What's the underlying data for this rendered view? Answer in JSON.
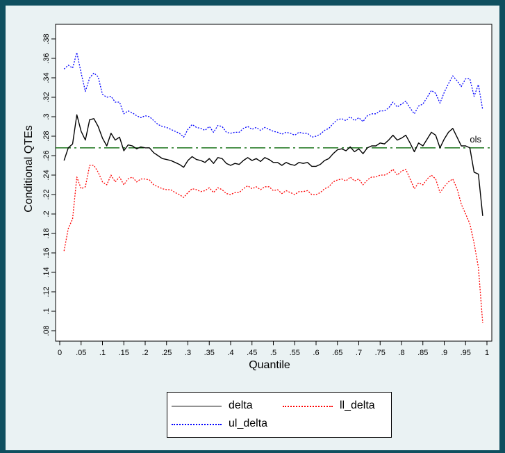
{
  "chart_data": {
    "type": "line",
    "xlabel": "Quantile",
    "ylabel": "Conditional QTEs",
    "xlim": [
      0,
      1
    ],
    "ylim": [
      0.08,
      0.38
    ],
    "x_ticks": [
      "0",
      ".05",
      ".1",
      ".15",
      ".2",
      ".25",
      ".3",
      ".35",
      ".4",
      ".45",
      ".5",
      ".55",
      ".6",
      ".65",
      ".7",
      ".75",
      ".8",
      ".85",
      ".9",
      ".95",
      "1"
    ],
    "y_ticks": [
      ".08",
      ".1",
      ".12",
      ".14",
      ".16",
      ".18",
      ".2",
      ".22",
      ".24",
      ".26",
      ".28",
      ".3",
      ".32",
      ".34",
      ".36",
      ".38"
    ],
    "grid": false,
    "legend_position": "bottom",
    "series": [
      {
        "name": "delta",
        "color": "#000000",
        "style": "solid",
        "points": [
          [
            0.01,
            0.255
          ],
          [
            0.02,
            0.268
          ],
          [
            0.03,
            0.272
          ],
          [
            0.04,
            0.302
          ],
          [
            0.05,
            0.285
          ],
          [
            0.06,
            0.276
          ],
          [
            0.07,
            0.297
          ],
          [
            0.08,
            0.298
          ],
          [
            0.09,
            0.29
          ],
          [
            0.1,
            0.278
          ],
          [
            0.11,
            0.27
          ],
          [
            0.12,
            0.283
          ],
          [
            0.13,
            0.276
          ],
          [
            0.14,
            0.279
          ],
          [
            0.15,
            0.265
          ],
          [
            0.16,
            0.271
          ],
          [
            0.17,
            0.27
          ],
          [
            0.18,
            0.267
          ],
          [
            0.19,
            0.269
          ],
          [
            0.2,
            0.268
          ],
          [
            0.21,
            0.268
          ],
          [
            0.22,
            0.263
          ],
          [
            0.23,
            0.26
          ],
          [
            0.24,
            0.257
          ],
          [
            0.25,
            0.256
          ],
          [
            0.26,
            0.255
          ],
          [
            0.27,
            0.253
          ],
          [
            0.28,
            0.251
          ],
          [
            0.29,
            0.248
          ],
          [
            0.3,
            0.255
          ],
          [
            0.31,
            0.259
          ],
          [
            0.32,
            0.256
          ],
          [
            0.33,
            0.255
          ],
          [
            0.34,
            0.253
          ],
          [
            0.35,
            0.257
          ],
          [
            0.36,
            0.252
          ],
          [
            0.37,
            0.258
          ],
          [
            0.38,
            0.257
          ],
          [
            0.39,
            0.252
          ],
          [
            0.4,
            0.25
          ],
          [
            0.41,
            0.252
          ],
          [
            0.42,
            0.251
          ],
          [
            0.43,
            0.255
          ],
          [
            0.44,
            0.258
          ],
          [
            0.45,
            0.255
          ],
          [
            0.46,
            0.257
          ],
          [
            0.47,
            0.254
          ],
          [
            0.48,
            0.258
          ],
          [
            0.49,
            0.256
          ],
          [
            0.5,
            0.253
          ],
          [
            0.51,
            0.253
          ],
          [
            0.52,
            0.25
          ],
          [
            0.53,
            0.253
          ],
          [
            0.54,
            0.251
          ],
          [
            0.55,
            0.25
          ],
          [
            0.56,
            0.253
          ],
          [
            0.57,
            0.252
          ],
          [
            0.58,
            0.253
          ],
          [
            0.59,
            0.249
          ],
          [
            0.6,
            0.249
          ],
          [
            0.61,
            0.251
          ],
          [
            0.62,
            0.255
          ],
          [
            0.63,
            0.257
          ],
          [
            0.64,
            0.262
          ],
          [
            0.65,
            0.266
          ],
          [
            0.66,
            0.267
          ],
          [
            0.67,
            0.265
          ],
          [
            0.68,
            0.269
          ],
          [
            0.69,
            0.264
          ],
          [
            0.7,
            0.267
          ],
          [
            0.71,
            0.262
          ],
          [
            0.72,
            0.268
          ],
          [
            0.73,
            0.27
          ],
          [
            0.74,
            0.27
          ],
          [
            0.75,
            0.273
          ],
          [
            0.76,
            0.272
          ],
          [
            0.77,
            0.276
          ],
          [
            0.78,
            0.281
          ],
          [
            0.79,
            0.276
          ],
          [
            0.8,
            0.278
          ],
          [
            0.81,
            0.281
          ],
          [
            0.82,
            0.273
          ],
          [
            0.83,
            0.264
          ],
          [
            0.84,
            0.273
          ],
          [
            0.85,
            0.27
          ],
          [
            0.86,
            0.277
          ],
          [
            0.87,
            0.284
          ],
          [
            0.88,
            0.281
          ],
          [
            0.89,
            0.268
          ],
          [
            0.9,
            0.277
          ],
          [
            0.91,
            0.284
          ],
          [
            0.92,
            0.288
          ],
          [
            0.93,
            0.279
          ],
          [
            0.94,
            0.27
          ],
          [
            0.95,
            0.27
          ],
          [
            0.96,
            0.268
          ],
          [
            0.97,
            0.243
          ],
          [
            0.98,
            0.241
          ],
          [
            0.99,
            0.198
          ]
        ]
      },
      {
        "name": "ll_delta",
        "color": "#ff0000",
        "style": "dotted",
        "points": [
          [
            0.01,
            0.162
          ],
          [
            0.02,
            0.185
          ],
          [
            0.03,
            0.195
          ],
          [
            0.04,
            0.238
          ],
          [
            0.05,
            0.226
          ],
          [
            0.06,
            0.228
          ],
          [
            0.07,
            0.25
          ],
          [
            0.08,
            0.25
          ],
          [
            0.09,
            0.243
          ],
          [
            0.1,
            0.233
          ],
          [
            0.11,
            0.23
          ],
          [
            0.12,
            0.24
          ],
          [
            0.13,
            0.233
          ],
          [
            0.14,
            0.238
          ],
          [
            0.15,
            0.23
          ],
          [
            0.16,
            0.236
          ],
          [
            0.17,
            0.238
          ],
          [
            0.18,
            0.233
          ],
          [
            0.19,
            0.236
          ],
          [
            0.2,
            0.236
          ],
          [
            0.21,
            0.235
          ],
          [
            0.22,
            0.23
          ],
          [
            0.23,
            0.228
          ],
          [
            0.24,
            0.226
          ],
          [
            0.25,
            0.225
          ],
          [
            0.26,
            0.225
          ],
          [
            0.27,
            0.222
          ],
          [
            0.28,
            0.22
          ],
          [
            0.29,
            0.217
          ],
          [
            0.3,
            0.222
          ],
          [
            0.31,
            0.226
          ],
          [
            0.32,
            0.225
          ],
          [
            0.33,
            0.223
          ],
          [
            0.34,
            0.224
          ],
          [
            0.35,
            0.227
          ],
          [
            0.36,
            0.222
          ],
          [
            0.37,
            0.227
          ],
          [
            0.38,
            0.225
          ],
          [
            0.39,
            0.221
          ],
          [
            0.4,
            0.22
          ],
          [
            0.41,
            0.222
          ],
          [
            0.42,
            0.222
          ],
          [
            0.43,
            0.226
          ],
          [
            0.44,
            0.229
          ],
          [
            0.45,
            0.226
          ],
          [
            0.46,
            0.228
          ],
          [
            0.47,
            0.225
          ],
          [
            0.48,
            0.228
          ],
          [
            0.49,
            0.228
          ],
          [
            0.5,
            0.224
          ],
          [
            0.51,
            0.225
          ],
          [
            0.52,
            0.221
          ],
          [
            0.53,
            0.224
          ],
          [
            0.54,
            0.222
          ],
          [
            0.55,
            0.22
          ],
          [
            0.56,
            0.223
          ],
          [
            0.57,
            0.223
          ],
          [
            0.58,
            0.224
          ],
          [
            0.59,
            0.22
          ],
          [
            0.6,
            0.22
          ],
          [
            0.61,
            0.222
          ],
          [
            0.62,
            0.226
          ],
          [
            0.63,
            0.228
          ],
          [
            0.64,
            0.233
          ],
          [
            0.65,
            0.235
          ],
          [
            0.66,
            0.236
          ],
          [
            0.67,
            0.234
          ],
          [
            0.68,
            0.238
          ],
          [
            0.69,
            0.234
          ],
          [
            0.7,
            0.236
          ],
          [
            0.71,
            0.23
          ],
          [
            0.72,
            0.235
          ],
          [
            0.73,
            0.238
          ],
          [
            0.74,
            0.238
          ],
          [
            0.75,
            0.24
          ],
          [
            0.76,
            0.24
          ],
          [
            0.77,
            0.242
          ],
          [
            0.78,
            0.246
          ],
          [
            0.79,
            0.24
          ],
          [
            0.8,
            0.244
          ],
          [
            0.81,
            0.246
          ],
          [
            0.82,
            0.236
          ],
          [
            0.83,
            0.226
          ],
          [
            0.84,
            0.232
          ],
          [
            0.85,
            0.23
          ],
          [
            0.86,
            0.236
          ],
          [
            0.87,
            0.24
          ],
          [
            0.88,
            0.236
          ],
          [
            0.89,
            0.222
          ],
          [
            0.9,
            0.228
          ],
          [
            0.91,
            0.233
          ],
          [
            0.92,
            0.236
          ],
          [
            0.93,
            0.226
          ],
          [
            0.94,
            0.21
          ],
          [
            0.95,
            0.2
          ],
          [
            0.96,
            0.19
          ],
          [
            0.97,
            0.17
          ],
          [
            0.98,
            0.145
          ],
          [
            0.99,
            0.088
          ]
        ]
      },
      {
        "name": "ul_delta",
        "color": "#0000ff",
        "style": "dotted",
        "points": [
          [
            0.01,
            0.349
          ],
          [
            0.02,
            0.353
          ],
          [
            0.03,
            0.35
          ],
          [
            0.04,
            0.366
          ],
          [
            0.05,
            0.345
          ],
          [
            0.06,
            0.326
          ],
          [
            0.07,
            0.34
          ],
          [
            0.08,
            0.345
          ],
          [
            0.09,
            0.341
          ],
          [
            0.1,
            0.323
          ],
          [
            0.11,
            0.32
          ],
          [
            0.12,
            0.321
          ],
          [
            0.13,
            0.315
          ],
          [
            0.14,
            0.315
          ],
          [
            0.15,
            0.303
          ],
          [
            0.16,
            0.306
          ],
          [
            0.17,
            0.304
          ],
          [
            0.18,
            0.301
          ],
          [
            0.19,
            0.299
          ],
          [
            0.2,
            0.301
          ],
          [
            0.21,
            0.3
          ],
          [
            0.22,
            0.296
          ],
          [
            0.23,
            0.292
          ],
          [
            0.24,
            0.29
          ],
          [
            0.25,
            0.289
          ],
          [
            0.26,
            0.287
          ],
          [
            0.27,
            0.285
          ],
          [
            0.28,
            0.283
          ],
          [
            0.29,
            0.279
          ],
          [
            0.3,
            0.287
          ],
          [
            0.31,
            0.292
          ],
          [
            0.32,
            0.289
          ],
          [
            0.33,
            0.288
          ],
          [
            0.34,
            0.286
          ],
          [
            0.35,
            0.29
          ],
          [
            0.36,
            0.284
          ],
          [
            0.37,
            0.291
          ],
          [
            0.38,
            0.29
          ],
          [
            0.39,
            0.284
          ],
          [
            0.4,
            0.283
          ],
          [
            0.41,
            0.284
          ],
          [
            0.42,
            0.284
          ],
          [
            0.43,
            0.288
          ],
          [
            0.44,
            0.29
          ],
          [
            0.45,
            0.287
          ],
          [
            0.46,
            0.289
          ],
          [
            0.47,
            0.286
          ],
          [
            0.48,
            0.289
          ],
          [
            0.49,
            0.287
          ],
          [
            0.5,
            0.285
          ],
          [
            0.51,
            0.284
          ],
          [
            0.52,
            0.282
          ],
          [
            0.53,
            0.284
          ],
          [
            0.54,
            0.283
          ],
          [
            0.55,
            0.281
          ],
          [
            0.56,
            0.284
          ],
          [
            0.57,
            0.283
          ],
          [
            0.58,
            0.283
          ],
          [
            0.59,
            0.279
          ],
          [
            0.6,
            0.28
          ],
          [
            0.61,
            0.282
          ],
          [
            0.62,
            0.286
          ],
          [
            0.63,
            0.288
          ],
          [
            0.64,
            0.293
          ],
          [
            0.65,
            0.297
          ],
          [
            0.66,
            0.298
          ],
          [
            0.67,
            0.296
          ],
          [
            0.68,
            0.3
          ],
          [
            0.69,
            0.296
          ],
          [
            0.7,
            0.299
          ],
          [
            0.71,
            0.295
          ],
          [
            0.72,
            0.301
          ],
          [
            0.73,
            0.303
          ],
          [
            0.74,
            0.303
          ],
          [
            0.75,
            0.306
          ],
          [
            0.76,
            0.306
          ],
          [
            0.77,
            0.309
          ],
          [
            0.78,
            0.315
          ],
          [
            0.79,
            0.31
          ],
          [
            0.8,
            0.313
          ],
          [
            0.81,
            0.316
          ],
          [
            0.82,
            0.309
          ],
          [
            0.83,
            0.303
          ],
          [
            0.84,
            0.311
          ],
          [
            0.85,
            0.313
          ],
          [
            0.86,
            0.32
          ],
          [
            0.87,
            0.327
          ],
          [
            0.88,
            0.324
          ],
          [
            0.89,
            0.314
          ],
          [
            0.9,
            0.325
          ],
          [
            0.91,
            0.334
          ],
          [
            0.92,
            0.342
          ],
          [
            0.93,
            0.337
          ],
          [
            0.94,
            0.331
          ],
          [
            0.95,
            0.339
          ],
          [
            0.96,
            0.339
          ],
          [
            0.97,
            0.321
          ],
          [
            0.98,
            0.333
          ],
          [
            0.99,
            0.307
          ]
        ]
      }
    ],
    "reference_line": {
      "label": "ols",
      "value": 0.268,
      "color": "#006400",
      "style": "dash-dot"
    }
  },
  "legend": {
    "items": [
      {
        "label": "delta",
        "color": "#000000",
        "style": "solid"
      },
      {
        "label": "ll_delta",
        "color": "#ff0000",
        "style": "dotted"
      },
      {
        "label": "ul_delta",
        "color": "#0000ff",
        "style": "dotted"
      }
    ]
  }
}
